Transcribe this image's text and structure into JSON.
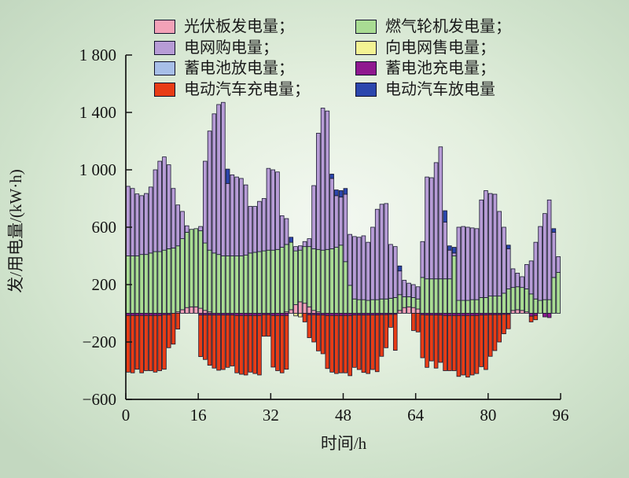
{
  "accent_colors": {
    "background_edge": "#c3d8c0",
    "background_center": "#f3f8f1",
    "axis": "#141414"
  },
  "chart_data": {
    "type": "bar",
    "stacked": true,
    "title": "",
    "xlabel": "时间/h",
    "ylabel": "发/用电量/(kW·h)",
    "ylim": [
      -600,
      1800
    ],
    "xlim": [
      0,
      96
    ],
    "grid": false,
    "legend_position": "top-inside",
    "xticks": [
      0,
      16,
      32,
      48,
      64,
      80,
      96
    ],
    "yticks": [
      1800,
      1400,
      1000,
      600,
      200,
      -200,
      -600
    ],
    "yticklabels": [
      "1 800",
      "1 400",
      "1 000",
      "600",
      "200",
      "−200",
      "−600"
    ],
    "hours": 96,
    "stack_order_positive": [
      "pv",
      "gas",
      "buy",
      "bd",
      "evd"
    ],
    "stack_order_negative": [
      "sell",
      "bc",
      "evc"
    ],
    "series": [
      {
        "id": "pv",
        "name": "光伏板发电量",
        "legend_label": "光伏板发电量；",
        "color": "#f3a2b8",
        "values": [
          0,
          0,
          0,
          0,
          0,
          0,
          0,
          0,
          0,
          0,
          0,
          10,
          25,
          40,
          45,
          45,
          35,
          20,
          10,
          0,
          0,
          0,
          0,
          0,
          0,
          0,
          0,
          0,
          0,
          0,
          0,
          0,
          0,
          0,
          0,
          10,
          25,
          60,
          80,
          70,
          45,
          20,
          10,
          0,
          0,
          0,
          0,
          0,
          0,
          0,
          0,
          0,
          0,
          0,
          0,
          0,
          0,
          0,
          0,
          0,
          20,
          40,
          45,
          40,
          30,
          0,
          0,
          0,
          0,
          0,
          0,
          0,
          0,
          0,
          0,
          0,
          0,
          0,
          0,
          0,
          0,
          0,
          0,
          0,
          0,
          20,
          25,
          20,
          10,
          0,
          0,
          0,
          0,
          0,
          0,
          0
        ]
      },
      {
        "id": "gas",
        "name": "燃气轮机发电量",
        "legend_label": "燃气轮机发电量；",
        "color": "#a9dc93",
        "values": [
          400,
          400,
          400,
          410,
          410,
          420,
          430,
          430,
          440,
          450,
          455,
          460,
          495,
          525,
          540,
          545,
          540,
          470,
          430,
          420,
          410,
          400,
          400,
          400,
          400,
          400,
          405,
          420,
          425,
          430,
          435,
          440,
          440,
          445,
          460,
          470,
          470,
          375,
          360,
          395,
          420,
          430,
          435,
          440,
          445,
          450,
          460,
          475,
          360,
          195,
          100,
          95,
          95,
          90,
          95,
          95,
          100,
          100,
          105,
          110,
          110,
          75,
          70,
          70,
          70,
          250,
          240,
          240,
          240,
          240,
          240,
          240,
          400,
          90,
          90,
          90,
          95,
          95,
          110,
          110,
          120,
          120,
          120,
          140,
          170,
          160,
          160,
          160,
          160,
          135,
          100,
          90,
          95,
          95,
          250,
          285
        ]
      },
      {
        "id": "buy",
        "name": "电网购电量",
        "legend_label": "电网购电量；",
        "color": "#b79cd6",
        "values": [
          485,
          470,
          432,
          410,
          425,
          460,
          570,
          630,
          650,
          585,
          415,
          285,
          190,
          45,
          0,
          0,
          30,
          570,
          830,
          970,
          1045,
          1070,
          505,
          565,
          550,
          540,
          490,
          325,
          320,
          350,
          365,
          570,
          560,
          540,
          220,
          180,
          0,
          30,
          30,
          35,
          55,
          440,
          810,
          990,
          965,
          490,
          360,
          335,
          470,
          355,
          435,
          435,
          445,
          405,
          505,
          630,
          660,
          665,
          375,
          355,
          165,
          115,
          95,
          90,
          85,
          250,
          710,
          705,
          810,
          920,
          395,
          200,
          20,
          510,
          515,
          510,
          500,
          495,
          680,
          745,
          715,
          710,
          590,
          460,
          280,
          130,
          95,
          75,
          170,
          230,
          395,
          515,
          600,
          695,
          315,
          110
        ]
      },
      {
        "id": "sell",
        "name": "向电网售电量",
        "legend_label": "向电网售电量；",
        "color": "#f3f393",
        "values": [
          0,
          0,
          0,
          0,
          0,
          0,
          0,
          0,
          0,
          0,
          0,
          0,
          0,
          0,
          0,
          0,
          0,
          0,
          0,
          0,
          0,
          0,
          0,
          0,
          0,
          0,
          0,
          0,
          0,
          0,
          0,
          0,
          0,
          0,
          0,
          0,
          0,
          -18,
          -25,
          0,
          0,
          0,
          0,
          0,
          0,
          0,
          0,
          0,
          0,
          0,
          0,
          0,
          0,
          0,
          0,
          0,
          0,
          0,
          0,
          0,
          0,
          0,
          0,
          0,
          0,
          0,
          0,
          0,
          0,
          0,
          0,
          0,
          0,
          0,
          0,
          0,
          0,
          0,
          0,
          0,
          0,
          0,
          0,
          0,
          0,
          0,
          0,
          0,
          0,
          0,
          0,
          0,
          0,
          0,
          0,
          0
        ]
      },
      {
        "id": "bd",
        "name": "蓄电池放电量",
        "legend_label": "蓄电池放电量；",
        "color": "#a7bfe8",
        "values": [
          0,
          0,
          0,
          0,
          0,
          0,
          0,
          0,
          0,
          0,
          0,
          0,
          0,
          0,
          0,
          0,
          0,
          0,
          0,
          0,
          0,
          0,
          0,
          0,
          0,
          0,
          0,
          0,
          0,
          0,
          0,
          0,
          0,
          0,
          0,
          0,
          0,
          0,
          0,
          0,
          0,
          0,
          0,
          0,
          0,
          0,
          0,
          0,
          0,
          0,
          0,
          0,
          0,
          0,
          0,
          0,
          0,
          0,
          0,
          0,
          0,
          0,
          0,
          0,
          0,
          0,
          0,
          0,
          0,
          0,
          0,
          0,
          0,
          0,
          0,
          0,
          0,
          0,
          0,
          0,
          0,
          0,
          0,
          0,
          0,
          0,
          0,
          0,
          0,
          0,
          0,
          0,
          0,
          0,
          0,
          0
        ]
      },
      {
        "id": "bc",
        "name": "蓄电池充电量",
        "legend_label": "蓄电池充电量；",
        "color": "#8f188f",
        "values": [
          -15,
          -15,
          -15,
          -15,
          -15,
          -15,
          -15,
          -15,
          -10,
          -10,
          0,
          0,
          0,
          0,
          0,
          0,
          -12,
          -12,
          -12,
          -12,
          -12,
          -12,
          -12,
          -12,
          -15,
          -15,
          -15,
          -15,
          -15,
          -15,
          -10,
          -10,
          -15,
          -15,
          -15,
          -15,
          0,
          0,
          0,
          0,
          -10,
          -10,
          -12,
          -12,
          -15,
          -15,
          -15,
          -15,
          -15,
          -15,
          -12,
          -12,
          -12,
          -12,
          -12,
          -12,
          -10,
          -10,
          -8,
          -8,
          0,
          0,
          0,
          0,
          0,
          -10,
          -12,
          -12,
          -12,
          -12,
          -15,
          -15,
          -15,
          -15,
          -15,
          -15,
          -15,
          -15,
          -12,
          -12,
          -10,
          -10,
          -10,
          -8,
          -8,
          0,
          0,
          0,
          0,
          -20,
          -15,
          0,
          -25,
          -30,
          0,
          0
        ]
      },
      {
        "id": "evc",
        "name": "电动汽车充电量",
        "legend_label": "电动汽车充电量；",
        "color": "#e83c16",
        "values": [
          -395,
          -400,
          -375,
          -400,
          -385,
          -385,
          -395,
          -385,
          -380,
          -230,
          -215,
          -110,
          0,
          0,
          0,
          0,
          -290,
          -310,
          -350,
          -370,
          -385,
          -380,
          -365,
          -355,
          -400,
          -410,
          -415,
          -395,
          -405,
          -415,
          -150,
          -150,
          -360,
          -385,
          -400,
          -375,
          0,
          0,
          0,
          -60,
          -160,
          -190,
          -250,
          -270,
          -370,
          -395,
          -405,
          -400,
          -400,
          -420,
          -365,
          -380,
          -400,
          -408,
          -380,
          -395,
          -290,
          -230,
          -90,
          -250,
          0,
          0,
          0,
          -120,
          -130,
          -300,
          -365,
          -320,
          -370,
          -330,
          -385,
          -385,
          -385,
          -425,
          -415,
          -430,
          -415,
          -405,
          -360,
          -380,
          -290,
          -250,
          -190,
          -135,
          -100,
          0,
          0,
          0,
          0,
          -40,
          -30,
          0,
          0,
          0,
          0,
          0
        ]
      },
      {
        "id": "evd",
        "name": "电动汽车放电量",
        "legend_label": "电动汽车放电量",
        "color": "#2b46ad",
        "values": [
          0,
          0,
          0,
          0,
          0,
          0,
          0,
          0,
          0,
          0,
          0,
          0,
          0,
          0,
          0,
          0,
          0,
          0,
          0,
          0,
          0,
          0,
          100,
          0,
          0,
          0,
          0,
          0,
          0,
          0,
          0,
          0,
          0,
          0,
          0,
          0,
          35,
          0,
          0,
          0,
          0,
          0,
          0,
          0,
          0,
          30,
          40,
          45,
          40,
          0,
          0,
          0,
          0,
          0,
          0,
          0,
          0,
          0,
          0,
          0,
          35,
          0,
          0,
          0,
          0,
          0,
          0,
          0,
          0,
          0,
          80,
          30,
          40,
          0,
          0,
          0,
          0,
          0,
          0,
          0,
          0,
          0,
          0,
          0,
          25,
          0,
          0,
          0,
          0,
          0,
          0,
          0,
          0,
          0,
          25,
          0
        ]
      }
    ]
  },
  "legend": {
    "order": [
      "pv",
      "gas",
      "buy",
      "sell",
      "bd",
      "bc",
      "evc",
      "evd"
    ]
  }
}
